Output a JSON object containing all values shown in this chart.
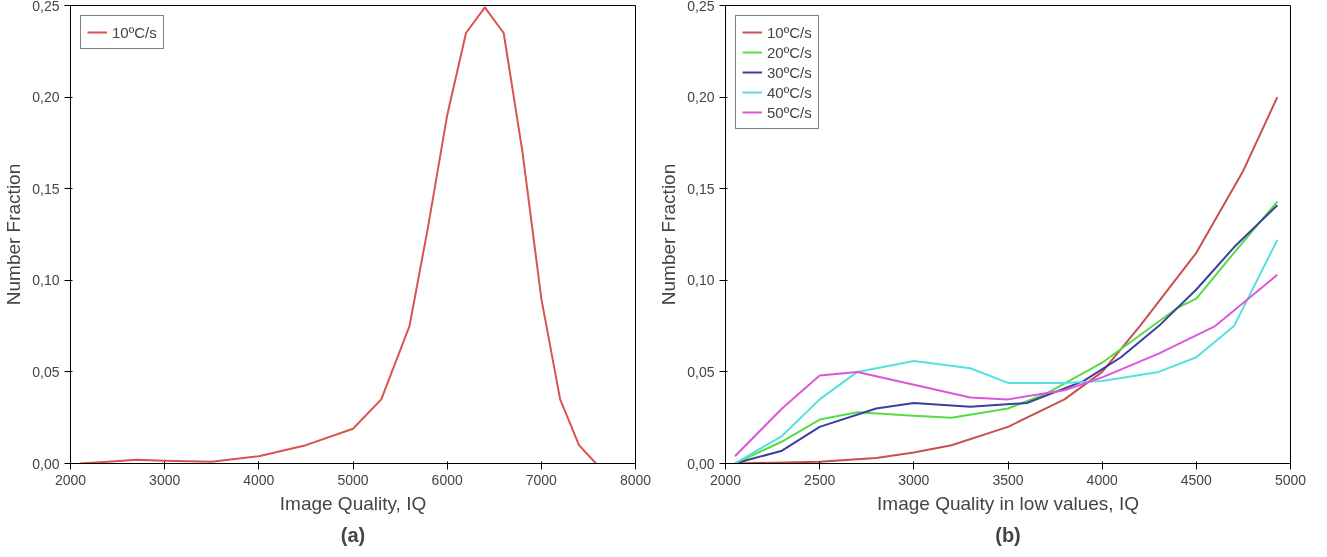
{
  "chart_data": [
    {
      "type": "line",
      "title": "(a)",
      "xlabel": "Image Quality, IQ",
      "ylabel": "Number Fraction",
      "xlim": [
        2000,
        8000
      ],
      "ylim": [
        0,
        0.25
      ],
      "xticks": [
        2000,
        3000,
        4000,
        5000,
        6000,
        7000,
        8000
      ],
      "yticks": [
        {
          "value": 0,
          "label": "0,00"
        },
        {
          "value": 0.05,
          "label": "0,05"
        },
        {
          "value": 0.1,
          "label": "0,10"
        },
        {
          "value": 0.15,
          "label": "0,15"
        },
        {
          "value": 0.2,
          "label": "0,20"
        },
        {
          "value": 0.25,
          "label": "0,25"
        }
      ],
      "grid": false,
      "legend": "top left",
      "series": [
        {
          "name": "10ºC/s",
          "color": "#d9534f",
          "x": [
            2100,
            2400,
            2700,
            3000,
            3500,
            4000,
            4500,
            5000,
            5300,
            5600,
            5800,
            6000,
            6200,
            6400,
            6600,
            6800,
            7000,
            7200,
            7400,
            7580
          ],
          "values": [
            0,
            0.001,
            0.002,
            0.0015,
            0.001,
            0.004,
            0.01,
            0.019,
            0.035,
            0.075,
            0.13,
            0.19,
            0.235,
            0.249,
            0.235,
            0.17,
            0.09,
            0.035,
            0.01,
            0
          ]
        }
      ]
    },
    {
      "type": "line",
      "title": "(b)",
      "xlabel": "Image Quality in low values, IQ",
      "ylabel": "Number Fraction",
      "xlim": [
        2000,
        5000
      ],
      "ylim": [
        0,
        0.25
      ],
      "xticks": [
        2000,
        2500,
        3000,
        3500,
        4000,
        4500,
        5000
      ],
      "yticks": [
        {
          "value": 0,
          "label": "0,00"
        },
        {
          "value": 0.05,
          "label": "0,05"
        },
        {
          "value": 0.1,
          "label": "0,10"
        },
        {
          "value": 0.15,
          "label": "0,15"
        },
        {
          "value": 0.2,
          "label": "0,20"
        },
        {
          "value": 0.25,
          "label": "0,25"
        }
      ],
      "grid": false,
      "legend": "top left",
      "series": [
        {
          "name": "10ºC/s",
          "color": "#c8504f",
          "x": [
            2050,
            2500,
            2800,
            3000,
            3200,
            3500,
            3800,
            4000,
            4200,
            4500,
            4750,
            4930
          ],
          "values": [
            0,
            0.001,
            0.003,
            0.006,
            0.01,
            0.02,
            0.035,
            0.05,
            0.075,
            0.115,
            0.16,
            0.2
          ]
        },
        {
          "name": "20ºC/s",
          "color": "#55dd44",
          "x": [
            2050,
            2300,
            2500,
            2700,
            3000,
            3200,
            3500,
            3700,
            4000,
            4200,
            4400,
            4500,
            4700,
            4930
          ],
          "values": [
            0,
            0.012,
            0.024,
            0.028,
            0.026,
            0.025,
            0.03,
            0.038,
            0.055,
            0.07,
            0.085,
            0.09,
            0.115,
            0.143
          ]
        },
        {
          "name": "30ºC/s",
          "color": "#3a3fa0",
          "x": [
            2050,
            2300,
            2500,
            2800,
            3000,
            3300,
            3600,
            3900,
            4100,
            4300,
            4500,
            4700,
            4930
          ],
          "values": [
            0,
            0.007,
            0.02,
            0.03,
            0.033,
            0.031,
            0.033,
            0.045,
            0.058,
            0.075,
            0.095,
            0.118,
            0.141
          ]
        },
        {
          "name": "40ºC/s",
          "color": "#55e0e0",
          "x": [
            2050,
            2300,
            2500,
            2700,
            3000,
            3300,
            3500,
            3800,
            4000,
            4300,
            4500,
            4700,
            4930
          ],
          "values": [
            0,
            0.015,
            0.035,
            0.05,
            0.056,
            0.052,
            0.044,
            0.044,
            0.045,
            0.05,
            0.058,
            0.075,
            0.122
          ]
        },
        {
          "name": "50ºC/s",
          "color": "#dd55dd",
          "x": [
            2050,
            2300,
            2500,
            2700,
            3000,
            3300,
            3500,
            3800,
            4000,
            4300,
            4600,
            4930
          ],
          "values": [
            0.004,
            0.03,
            0.048,
            0.05,
            0.043,
            0.036,
            0.035,
            0.04,
            0.047,
            0.06,
            0.075,
            0.103
          ]
        }
      ]
    }
  ]
}
